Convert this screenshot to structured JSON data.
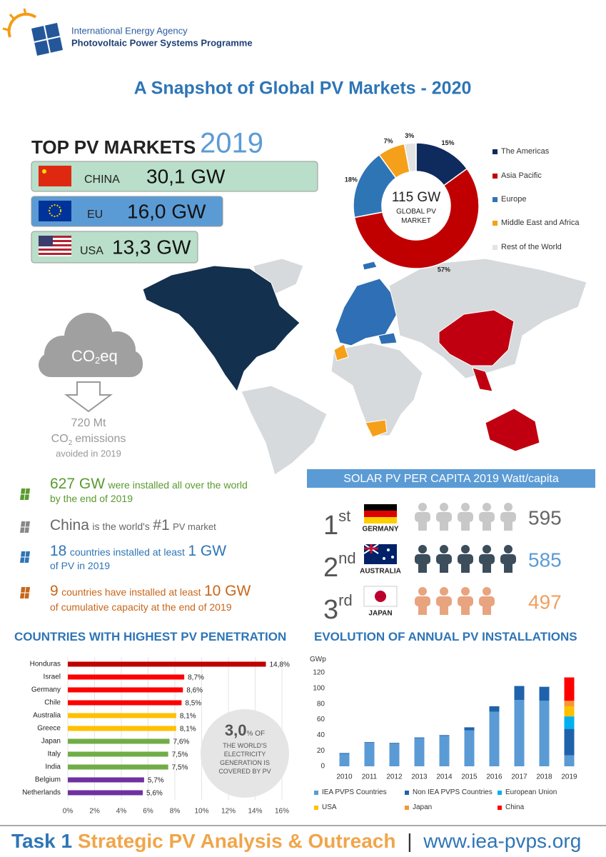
{
  "header": {
    "org": "International Energy Agency",
    "programme": "Photovoltaic Power Systems Programme",
    "title": "A Snapshot of Global PV Markets - 2020"
  },
  "top_markets": {
    "heading": "TOP PV MARKETS",
    "year": "2019",
    "rows": [
      {
        "country": "CHINA",
        "value": "30,1 GW"
      },
      {
        "country": "EU",
        "value": "16,0 GW"
      },
      {
        "country": "USA",
        "value": "13,3 GW"
      }
    ]
  },
  "co2": {
    "cloud": [
      "CO",
      "2",
      "eq"
    ],
    "amount": "720 Mt",
    "line": [
      "CO",
      "2",
      "emissions"
    ],
    "note": "avoided in 2019"
  },
  "facts": [
    [
      "627 GW",
      "were installed all over the world",
      "by the end of 2019"
    ],
    [
      "China",
      "is the world's",
      "#1",
      "PV market"
    ],
    [
      "18",
      "countries installed at least",
      "1 GW",
      "of PV in 2019"
    ],
    [
      "9",
      "countries have installed at least",
      "10 GW",
      "of cumulative capacity at the end of 2019"
    ]
  ],
  "per_capita": {
    "title": "SOLAR PV PER CAPITA 2019 Watt/capita",
    "ranks": [
      {
        "rank": "1",
        "suffix": "st",
        "country": "GERMANY",
        "value": 595
      },
      {
        "rank": "2",
        "suffix": "nd",
        "country": "AUSTRALIA",
        "value": 585
      },
      {
        "rank": "3",
        "suffix": "rd",
        "country": "JAPAN",
        "value": 497
      }
    ]
  },
  "footer": {
    "task": "Task 1",
    "subtitle": "Strategic PV Analysis & Outreach",
    "sep": "|",
    "url": "www.iea-pvps.org"
  },
  "chart_data": [
    {
      "type": "pie",
      "center_label": "115 GW",
      "center_sublabel": "GLOBAL PV MARKET",
      "categories": [
        "The Americas",
        "Asia Pacific",
        "Europe",
        "Middle East and Africa",
        "Rest of the World"
      ],
      "values": [
        15,
        57,
        18,
        7,
        3
      ],
      "value_labels": [
        "15%",
        "57%",
        "18%",
        "7%",
        "3%"
      ],
      "colors": [
        "#0f2a5c",
        "#c00000",
        "#2e75b6",
        "#f5a01a",
        "#e3e3e3"
      ]
    },
    {
      "type": "bar",
      "orientation": "horizontal",
      "title": "COUNTRIES WITH HIGHEST PV PENETRATION",
      "categories": [
        "Honduras",
        "Israel",
        "Germany",
        "Chile",
        "Australia",
        "Greece",
        "Japan",
        "Italy",
        "India",
        "Belgium",
        "Netherlands"
      ],
      "values": [
        14.8,
        8.7,
        8.6,
        8.5,
        8.1,
        8.1,
        7.6,
        7.5,
        7.5,
        5.7,
        5.6
      ],
      "value_labels": [
        "14,8%",
        "8,7%",
        "8,6%",
        "8,5%",
        "8,1%",
        "8,1%",
        "7,6%",
        "7,5%",
        "7,5%",
        "5,7%",
        "5,6%"
      ],
      "colors": [
        "#c00000",
        "#ff0000",
        "#ff0000",
        "#ff0000",
        "#ffc000",
        "#ffc000",
        "#70ad47",
        "#70ad47",
        "#70ad47",
        "#7030a0",
        "#7030a0"
      ],
      "xlim": [
        0,
        16
      ],
      "xticks": [
        {
          "value": 0,
          "label": "0%"
        },
        {
          "value": 2,
          "label": "2%"
        },
        {
          "value": 4,
          "label": "4%"
        },
        {
          "value": 6,
          "label": "6%"
        },
        {
          "value": 8,
          "label": "8%"
        },
        {
          "value": 10,
          "label": "10%"
        },
        {
          "value": 12,
          "label": "12%"
        },
        {
          "value": 14,
          "label": "14%"
        },
        {
          "value": 16,
          "label": "16%"
        }
      ],
      "grid": true,
      "annotation": {
        "value": "3,0",
        "unit": "% OF",
        "text": "THE WORLD'S ELECTRICITY GENERATION IS COVERED BY PV"
      }
    },
    {
      "type": "bar",
      "orientation": "vertical",
      "stacked": true,
      "title": "EVOLUTION OF ANNUAL PV INSTALLATIONS",
      "y_label": "GWp",
      "categories": [
        "2010",
        "2011",
        "2012",
        "2013",
        "2014",
        "2015",
        "2016",
        "2017",
        "2018",
        "2019"
      ],
      "series": [
        {
          "name": "IEA PVPS Countries",
          "color": "#5b9bd5",
          "values": [
            16,
            30,
            29,
            36,
            39,
            46,
            70,
            85,
            84,
            14
          ]
        },
        {
          "name": "Non IEA PVPS Countries",
          "color": "#1f62ac",
          "values": [
            1,
            1,
            1,
            1,
            1,
            4,
            7,
            18,
            18,
            34
          ]
        },
        {
          "name": "European Union",
          "color": "#00b0f0",
          "values": [
            null,
            null,
            null,
            null,
            null,
            null,
            null,
            null,
            null,
            16
          ]
        },
        {
          "name": "USA",
          "color": "#ffc000",
          "values": [
            null,
            null,
            null,
            null,
            null,
            null,
            null,
            null,
            null,
            13
          ]
        },
        {
          "name": "Japan",
          "color": "#f79636",
          "values": [
            null,
            null,
            null,
            null,
            null,
            null,
            null,
            null,
            null,
            7
          ]
        },
        {
          "name": "China",
          "color": "#ff0000",
          "values": [
            null,
            null,
            null,
            null,
            null,
            null,
            null,
            null,
            null,
            30
          ]
        }
      ],
      "ylim": [
        0,
        120
      ],
      "yticks": [
        0,
        20,
        40,
        60,
        80,
        100,
        120
      ]
    }
  ]
}
